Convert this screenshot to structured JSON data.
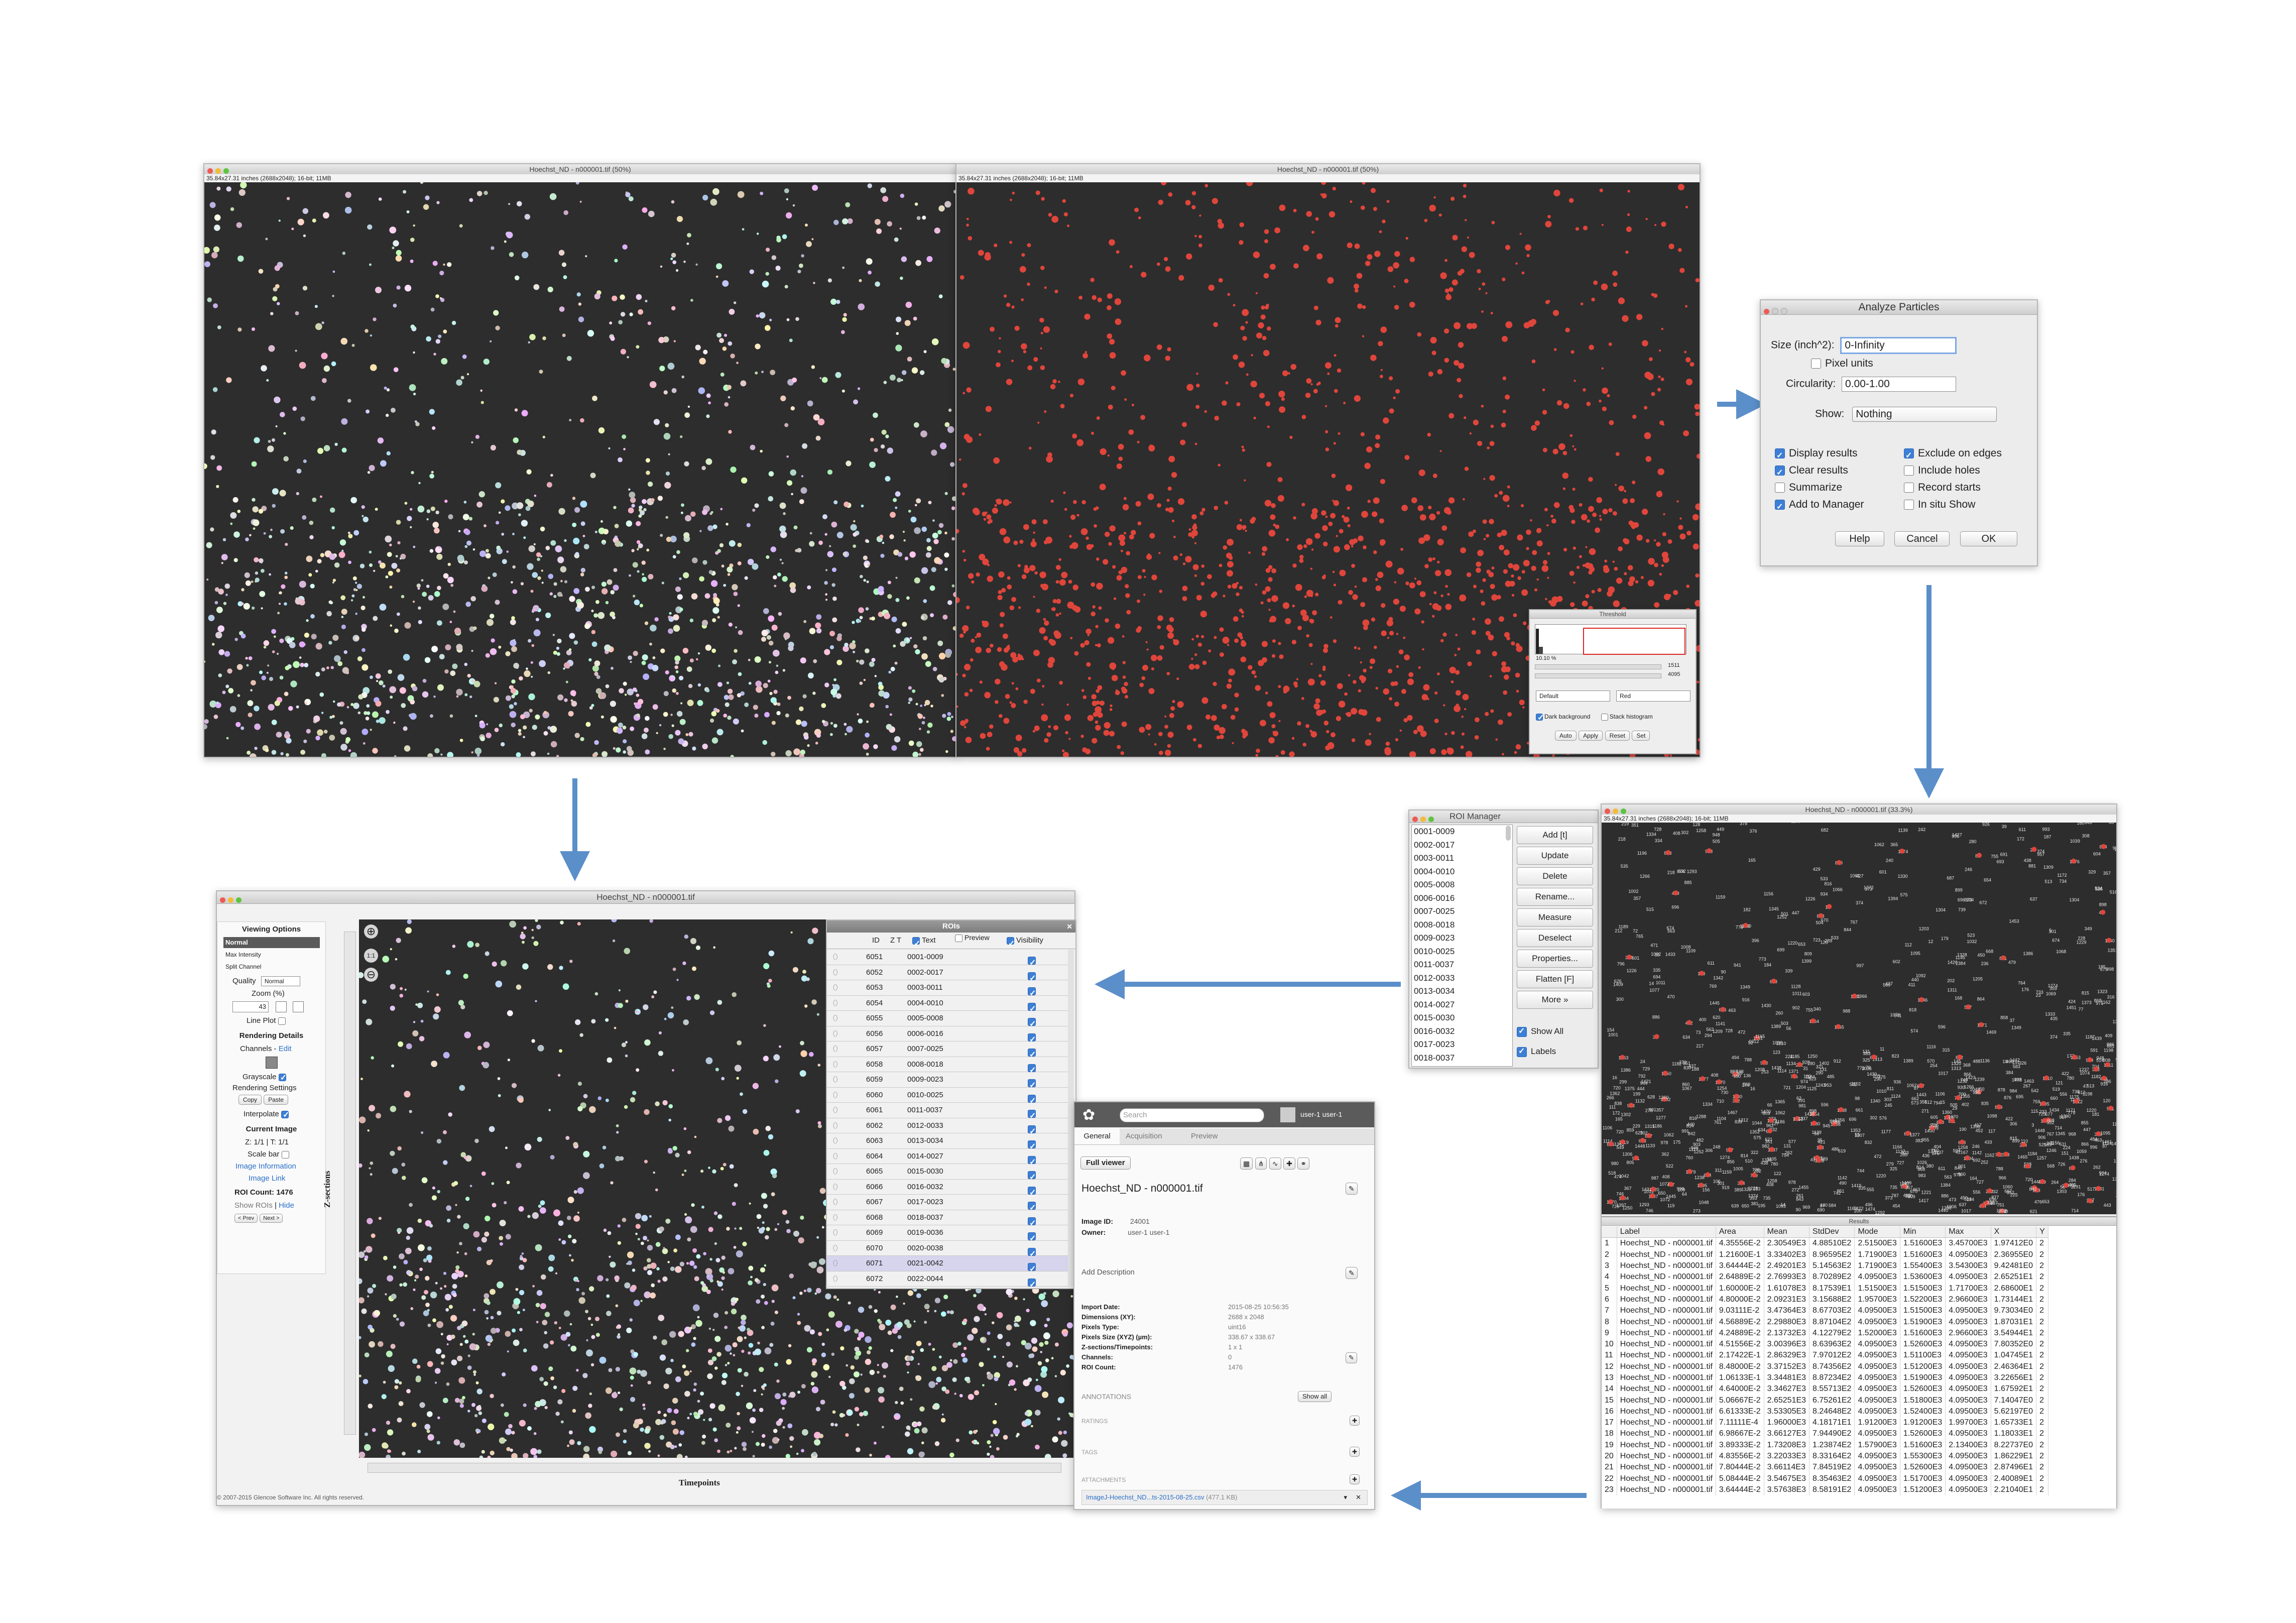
{
  "colors": {
    "arrow": "#5b8fc9",
    "red_nuclei": "#e0453b",
    "dark_bg": "#2d2d2d",
    "selected_row": "#d7d5ee"
  },
  "win1": {
    "title": "Hoechst_ND - n000001.tif (50%)",
    "info": "35.84x27.31 inches (2688x2048); 16-bit; 11MB"
  },
  "win2": {
    "title": "Hoechst_ND - n000001.tif (50%)",
    "info": "35.84x27.31 inches (2688x2048); 16-bit; 11MB"
  },
  "threshold": {
    "title": "Threshold",
    "pct": "10.10 %",
    "low": "1511",
    "high": "4095",
    "method": "Default",
    "mode": "Red",
    "dark_background": "Dark background",
    "stack_histogram": "Stack histogram",
    "buttons": [
      "Auto",
      "Apply",
      "Reset",
      "Set"
    ]
  },
  "analyze": {
    "title": "Analyze Particles",
    "size_label": "Size (inch^2):",
    "size_value": "0-Infinity",
    "pixel_units": "Pixel units",
    "circ_label": "Circularity:",
    "circ_value": "0.00-1.00",
    "show_label": "Show:",
    "show_value": "Nothing",
    "left_opts": [
      {
        "label": "Display results",
        "on": true
      },
      {
        "label": "Clear results",
        "on": true
      },
      {
        "label": "Summarize",
        "on": false
      },
      {
        "label": "Add to Manager",
        "on": true
      }
    ],
    "right_opts": [
      {
        "label": "Exclude on edges",
        "on": true
      },
      {
        "label": "Include holes",
        "on": false
      },
      {
        "label": "Record starts",
        "on": false
      },
      {
        "label": "In situ Show",
        "on": false
      }
    ],
    "help": "Help",
    "cancel": "Cancel",
    "ok": "OK"
  },
  "roi_manager": {
    "title": "ROI Manager",
    "items": [
      "0001-0009",
      "0002-0017",
      "0003-0011",
      "0004-0010",
      "0005-0008",
      "0006-0016",
      "0007-0025",
      "0008-0018",
      "0009-0023",
      "0010-0025",
      "0011-0037",
      "0012-0033",
      "0013-0034",
      "0014-0027",
      "0015-0030",
      "0016-0032",
      "0017-0023",
      "0018-0037"
    ],
    "buttons": [
      "Add [t]",
      "Update",
      "Delete",
      "Rename...",
      "Measure",
      "Deselect",
      "Properties...",
      "Flatten [F]",
      "More »"
    ],
    "show_all": "Show All",
    "labels": "Labels"
  },
  "win3": {
    "title": "Hoechst_ND - n000001.tif (33.3%)",
    "info": "35.84x27.31 inches (2688x2048); 16-bit; 11MB"
  },
  "results": {
    "title": "Results",
    "headers": [
      "",
      "Label",
      "Area",
      "Mean",
      "StdDev",
      "Mode",
      "Min",
      "Max",
      "X",
      "Y"
    ],
    "rows": [
      [
        "1",
        "Hoechst_ND - n000001.tif",
        "4.35556E-2",
        "2.30549E3",
        "4.88510E2",
        "2.51500E3",
        "1.51600E3",
        "3.45700E3",
        "1.97412E0",
        "2"
      ],
      [
        "2",
        "Hoechst_ND - n000001.tif",
        "1.21600E-1",
        "3.33402E3",
        "8.96595E2",
        "1.71900E3",
        "1.51600E3",
        "4.09500E3",
        "2.36955E0",
        "2"
      ],
      [
        "3",
        "Hoechst_ND - n000001.tif",
        "3.64444E-2",
        "2.49201E3",
        "5.14563E2",
        "1.71900E3",
        "1.55400E3",
        "3.54300E3",
        "9.42481E0",
        "2"
      ],
      [
        "4",
        "Hoechst_ND - n000001.tif",
        "2.64889E-2",
        "2.76993E3",
        "8.70289E2",
        "4.09500E3",
        "1.53600E3",
        "4.09500E3",
        "2.65251E1",
        "2"
      ],
      [
        "5",
        "Hoechst_ND - n000001.tif",
        "1.60000E-2",
        "1.61078E3",
        "8.17539E1",
        "1.51500E3",
        "1.51500E3",
        "1.71700E3",
        "2.68600E1",
        "2"
      ],
      [
        "6",
        "Hoechst_ND - n000001.tif",
        "4.80000E-2",
        "2.09231E3",
        "3.15688E2",
        "1.95700E3",
        "1.52200E3",
        "2.96600E3",
        "1.73144E1",
        "2"
      ],
      [
        "7",
        "Hoechst_ND - n000001.tif",
        "9.03111E-2",
        "3.47364E3",
        "8.67703E2",
        "4.09500E3",
        "1.51500E3",
        "4.09500E3",
        "9.73034E0",
        "2"
      ],
      [
        "8",
        "Hoechst_ND - n000001.tif",
        "4.56889E-2",
        "2.29880E3",
        "8.87104E2",
        "4.09500E3",
        "1.51900E3",
        "4.09500E3",
        "1.87031E1",
        "2"
      ],
      [
        "9",
        "Hoechst_ND - n000001.tif",
        "4.24889E-2",
        "2.13732E3",
        "4.12279E2",
        "1.52000E3",
        "1.51600E3",
        "2.96600E3",
        "3.54944E1",
        "2"
      ],
      [
        "10",
        "Hoechst_ND - n000001.tif",
        "4.51556E-2",
        "3.00396E3",
        "8.63963E2",
        "4.09500E3",
        "1.52600E3",
        "4.09500E3",
        "7.80352E0",
        "2"
      ],
      [
        "11",
        "Hoechst_ND - n000001.tif",
        "2.17422E-1",
        "2.86329E3",
        "7.97012E2",
        "4.09500E3",
        "1.51100E3",
        "4.09500E3",
        "1.04745E1",
        "2"
      ],
      [
        "12",
        "Hoechst_ND - n000001.tif",
        "8.48000E-2",
        "3.37152E3",
        "8.74356E2",
        "4.09500E3",
        "1.51200E3",
        "4.09500E3",
        "2.46364E1",
        "2"
      ],
      [
        "13",
        "Hoechst_ND - n000001.tif",
        "1.06133E-1",
        "3.34481E3",
        "8.87234E2",
        "4.09500E3",
        "1.51900E3",
        "4.09500E3",
        "3.22656E1",
        "2"
      ],
      [
        "14",
        "Hoechst_ND - n000001.tif",
        "4.64000E-2",
        "3.34627E3",
        "8.55713E2",
        "4.09500E3",
        "1.52600E3",
        "4.09500E3",
        "1.67592E1",
        "2"
      ],
      [
        "15",
        "Hoechst_ND - n000001.tif",
        "5.06667E-2",
        "2.65251E3",
        "6.75261E2",
        "4.09500E3",
        "1.51800E3",
        "4.09500E3",
        "7.14047E0",
        "2"
      ],
      [
        "16",
        "Hoechst_ND - n000001.tif",
        "6.61333E-2",
        "3.53305E3",
        "8.24648E2",
        "4.09500E3",
        "1.52400E3",
        "4.09500E3",
        "5.62197E0",
        "2"
      ],
      [
        "17",
        "Hoechst_ND - n000001.tif",
        "7.11111E-4",
        "1.96000E3",
        "4.18171E1",
        "1.91200E3",
        "1.91200E3",
        "1.99700E3",
        "1.65733E1",
        "2"
      ],
      [
        "18",
        "Hoechst_ND - n000001.tif",
        "6.98667E-2",
        "3.66127E3",
        "7.94490E2",
        "4.09500E3",
        "1.52600E3",
        "4.09500E3",
        "1.18033E1",
        "2"
      ],
      [
        "19",
        "Hoechst_ND - n000001.tif",
        "3.89333E-2",
        "1.73208E3",
        "1.23874E2",
        "1.57900E3",
        "1.51600E3",
        "2.13400E3",
        "8.22737E0",
        "2"
      ],
      [
        "20",
        "Hoechst_ND - n000001.tif",
        "4.83556E-2",
        "3.22033E3",
        "8.33164E2",
        "4.09500E3",
        "1.55300E3",
        "4.09500E3",
        "1.86229E1",
        "2"
      ],
      [
        "21",
        "Hoechst_ND - n000001.tif",
        "7.80444E-2",
        "3.66114E3",
        "7.84519E2",
        "4.09500E3",
        "1.52600E3",
        "4.09500E3",
        "2.87496E1",
        "2"
      ],
      [
        "22",
        "Hoechst_ND - n000001.tif",
        "5.08444E-2",
        "3.54675E3",
        "8.35463E2",
        "4.09500E3",
        "1.51700E3",
        "4.09500E3",
        "2.40089E1",
        "2"
      ],
      [
        "23",
        "Hoechst_ND - n000001.tif",
        "3.64444E-2",
        "3.57638E3",
        "8.58191E2",
        "4.09500E3",
        "1.51200E3",
        "4.09500E3",
        "2.21040E1",
        "2"
      ]
    ]
  },
  "omero_viewer": {
    "title": "Hoechst_ND - n000001.tif",
    "viewing_options": "Viewing Options",
    "modes": [
      "Normal",
      "Max Intensity",
      "Split Channel"
    ],
    "quality_label": "Quality",
    "quality_value": "Normal",
    "zoom_label": "Zoom (%)",
    "zoom_value": "43",
    "line_plot": "Line Plot",
    "rendering_details": "Rendering Details",
    "channels": "Channels -",
    "channels_edit": "Edit",
    "grayscale": "Grayscale",
    "rendering_settings": "Rendering Settings",
    "copy": "Copy",
    "paste": "Paste",
    "interpolate": "Interpolate",
    "current_image": "Current Image",
    "zt": "Z: 1/1 | T: 1/1",
    "scale_bar": "Scale bar",
    "image_information": "Image Information",
    "image_link": "Image Link",
    "roi_count": "ROI Count: 1476",
    "show_rois": "Show ROIs",
    "hide": "Hide",
    "prev": "< Prev",
    "next": "Next >",
    "zsections": "Z-sections",
    "timepoints": "Timepoints",
    "copyright": "© 2007-2015 Glencoe Software Inc. All rights reserved."
  },
  "rois_panel": {
    "title": "ROIs",
    "headers": {
      "id": "ID",
      "zt": "Z T",
      "text": "Text",
      "preview": "Preview",
      "visibility": "Visibility"
    },
    "rows": [
      {
        "id": "6051",
        "text": "0001-0009"
      },
      {
        "id": "6052",
        "text": "0002-0017"
      },
      {
        "id": "6053",
        "text": "0003-0011"
      },
      {
        "id": "6054",
        "text": "0004-0010"
      },
      {
        "id": "6055",
        "text": "0005-0008"
      },
      {
        "id": "6056",
        "text": "0006-0016"
      },
      {
        "id": "6057",
        "text": "0007-0025"
      },
      {
        "id": "6058",
        "text": "0008-0018"
      },
      {
        "id": "6059",
        "text": "0009-0023"
      },
      {
        "id": "6060",
        "text": "0010-0025"
      },
      {
        "id": "6061",
        "text": "0011-0037"
      },
      {
        "id": "6062",
        "text": "0012-0033"
      },
      {
        "id": "6063",
        "text": "0013-0034"
      },
      {
        "id": "6064",
        "text": "0014-0027"
      },
      {
        "id": "6065",
        "text": "0015-0030"
      },
      {
        "id": "6066",
        "text": "0016-0032"
      },
      {
        "id": "6067",
        "text": "0017-0023"
      },
      {
        "id": "6068",
        "text": "0018-0037"
      },
      {
        "id": "6069",
        "text": "0019-0036"
      },
      {
        "id": "6070",
        "text": "0020-0038"
      },
      {
        "id": "6071",
        "text": "0021-0042"
      },
      {
        "id": "6072",
        "text": "0022-0044"
      }
    ]
  },
  "omero_panel": {
    "search_placeholder": "Search",
    "user": "user-1 user-1",
    "tabs": [
      "General",
      "Acquisition",
      "Preview"
    ],
    "full_viewer": "Full viewer",
    "image_name": "Hoechst_ND - n000001.tif",
    "image_id_label": "Image ID:",
    "image_id": "24001",
    "owner_label": "Owner:",
    "owner": "user-1 user-1",
    "add_description": "Add Description",
    "meta": [
      {
        "k": "Import Date:",
        "v": "2015-08-25 10:56:35"
      },
      {
        "k": "Dimensions (XY):",
        "v": "2688 x 2048"
      },
      {
        "k": "Pixels Type:",
        "v": "uint16"
      },
      {
        "k": "Pixels Size (XYZ) (µm):",
        "v": "338.67 x 338.67"
      },
      {
        "k": "Z-sections/Timepoints:",
        "v": "1 x 1"
      },
      {
        "k": "Channels:",
        "v": "0"
      },
      {
        "k": "ROI Count:",
        "v": "1476"
      }
    ],
    "annotations": "ANNOTATIONS",
    "show_all": "Show all",
    "ratings": "RATINGS",
    "tags": "TAGS",
    "attachments": "ATTACHMENTS",
    "attachment_file": "ImageJ-Hoechst_ND...ts-2015-08-25.csv",
    "attachment_size": "(477.1 KB)"
  }
}
